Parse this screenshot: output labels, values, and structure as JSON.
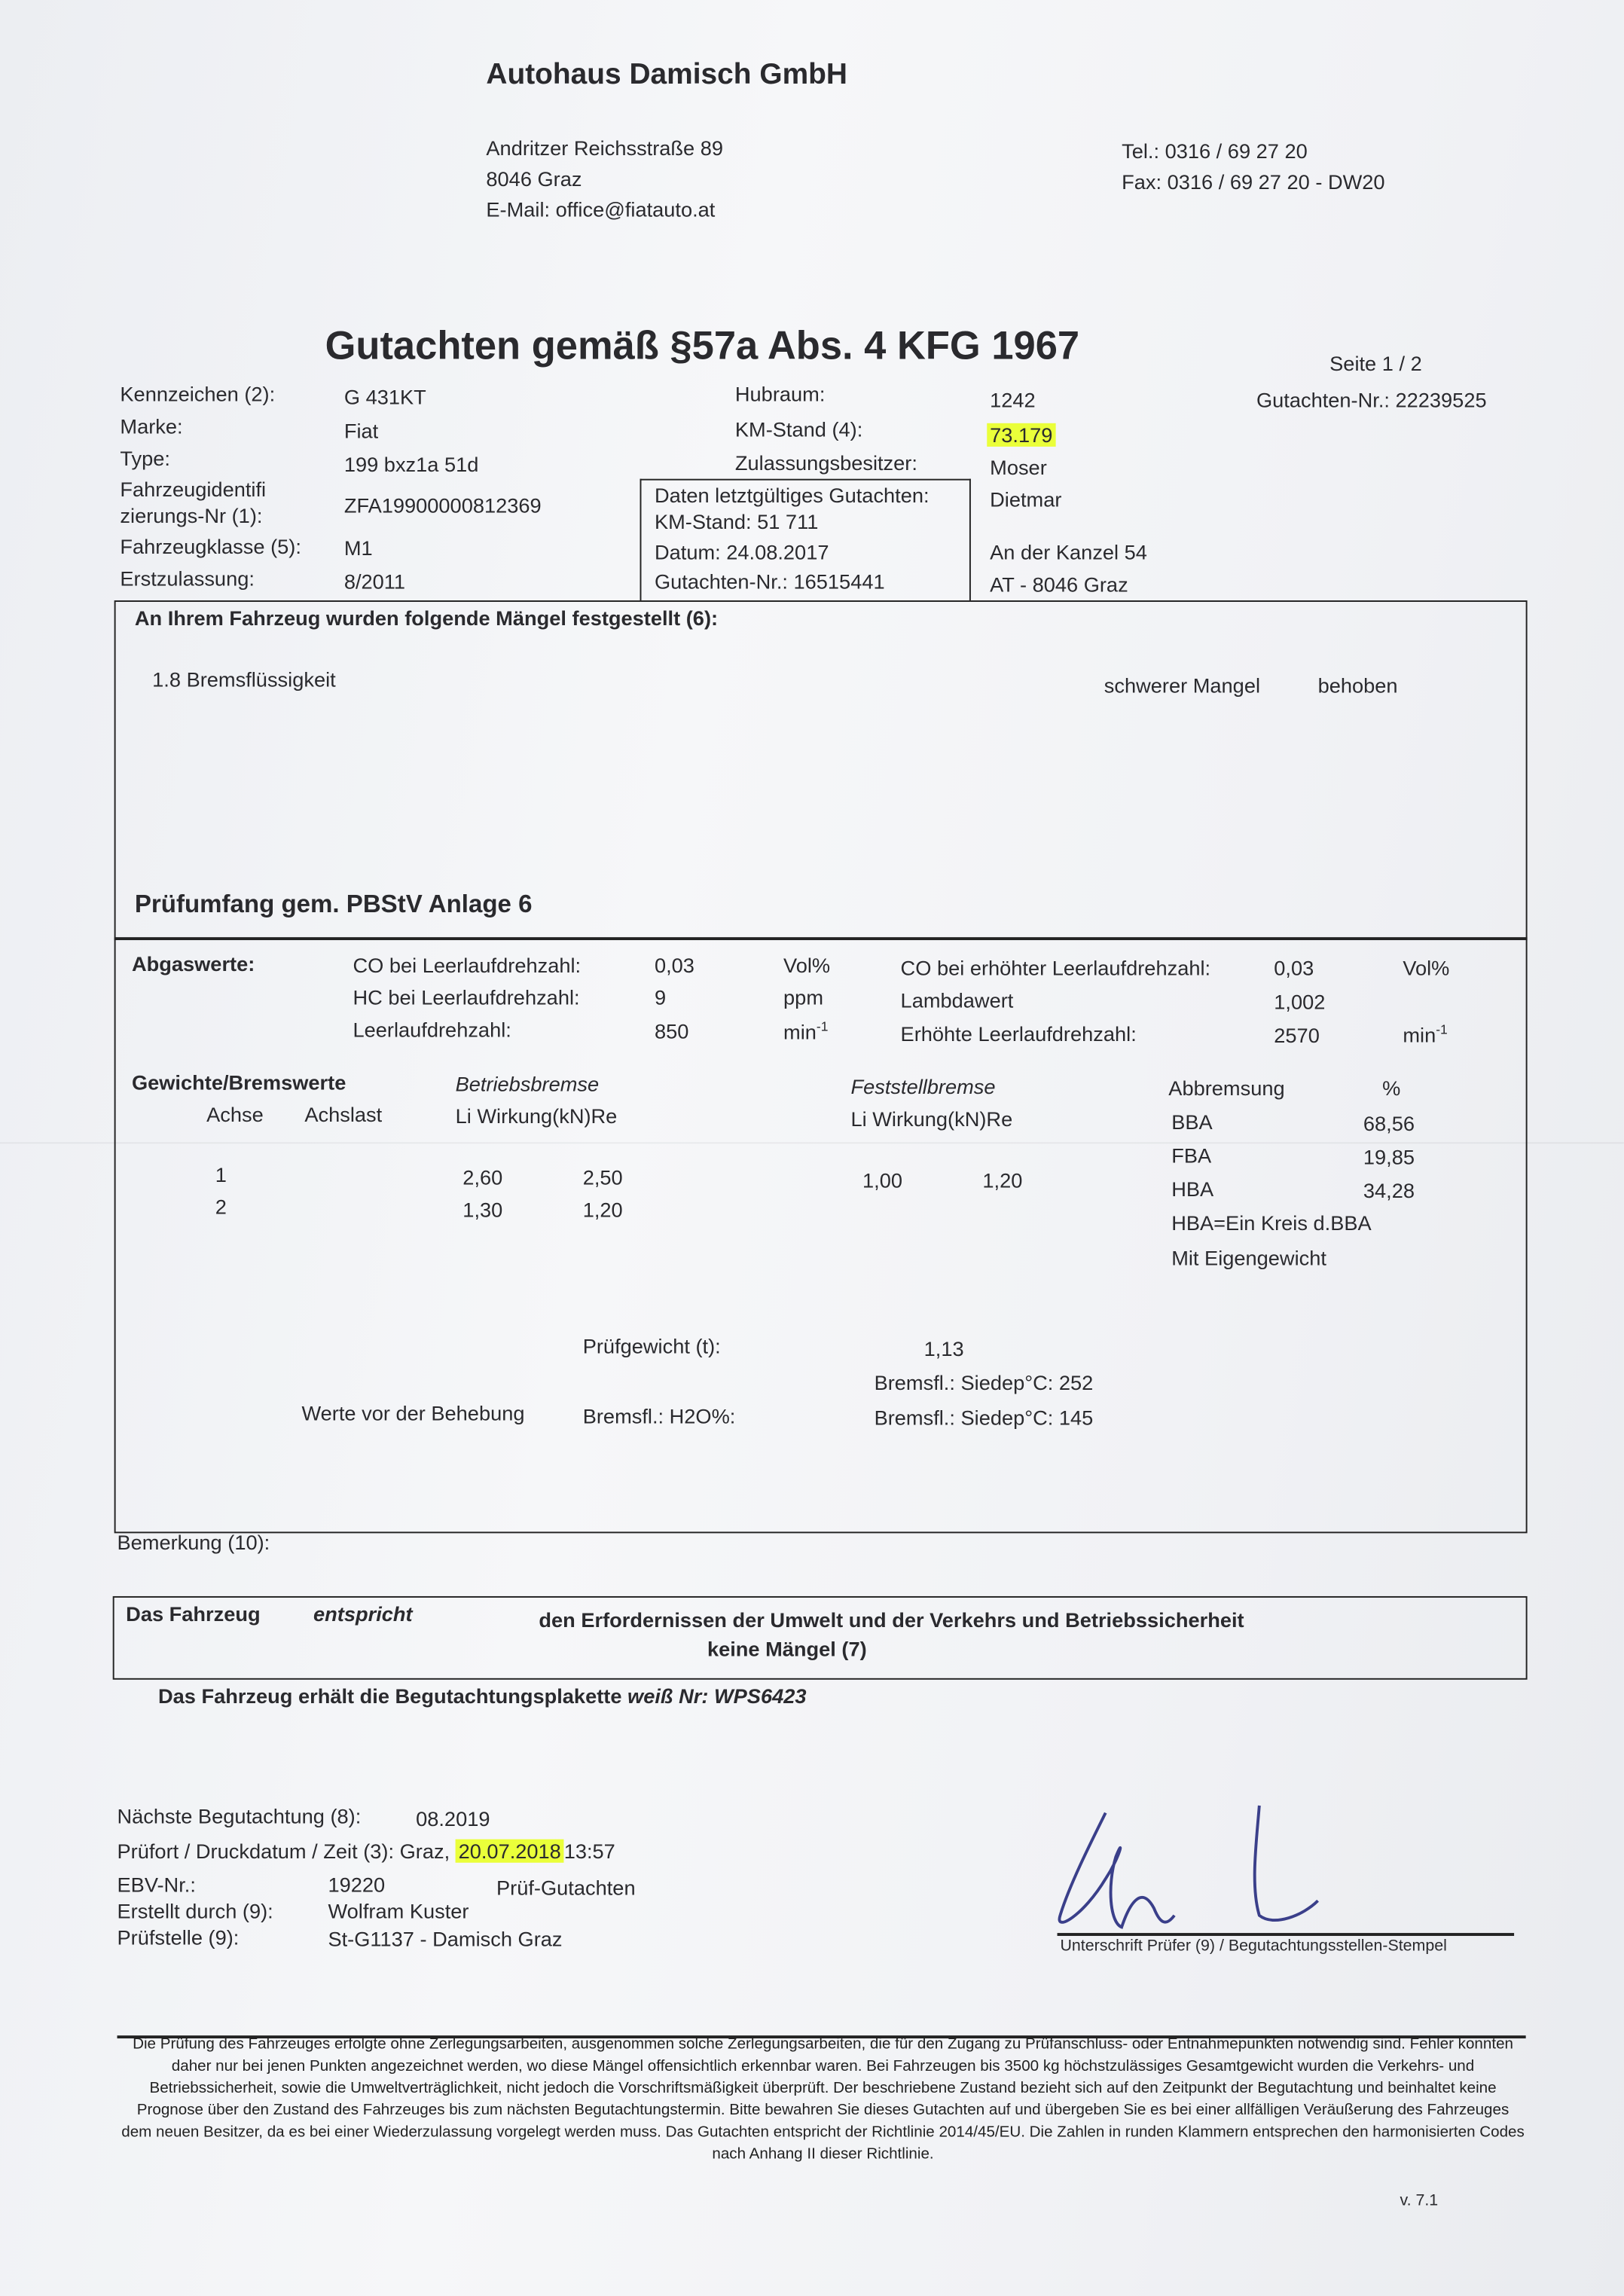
{
  "header": {
    "company": "Autohaus Damisch GmbH",
    "address": [
      "Andritzer Reichsstraße 89",
      "8046 Graz",
      "E-Mail: office@fiatauto.at"
    ],
    "tel": "Tel.: 0316 / 69 27 20",
    "fax": "Fax: 0316 / 69 27 20 - DW20"
  },
  "title": "Gutachten gemäß §57a Abs. 4 KFG 1967",
  "page": "Seite 1 / 2",
  "report_no": "Gutachten-Nr.: 22239525",
  "vehicle": {
    "kennzeichen_label": "Kennzeichen (2):",
    "kennzeichen": "G 431KT",
    "marke_label": "Marke:",
    "marke": "Fiat",
    "type_label": "Type:",
    "type": "199 bxz1a 51d",
    "fin_label_1": "Fahrzeugidentifi",
    "fin_label_2": "zierungs-Nr (1):",
    "fin": "ZFA19900000812369",
    "klasse_label": "Fahrzeugklasse (5):",
    "klasse": "M1",
    "erstzulassung_label": "Erstzulassung:",
    "erstzulassung": "8/2011",
    "hubraum_label": "Hubraum:",
    "hubraum": "1242",
    "km_label": "KM-Stand (4):",
    "km": "73.179",
    "besitzer_label": "Zulassungsbesitzer:",
    "besitzer": [
      "Moser",
      "Dietmar",
      "An der Kanzel 54",
      "AT - 8046 Graz"
    ]
  },
  "previous": {
    "title": "Daten letztgültiges Gutachten:",
    "km": "KM-Stand: 51 711",
    "datum": "Datum: 24.08.2017",
    "nr": "Gutachten-Nr.: 16515441"
  },
  "defects": {
    "heading": "An Ihrem Fahrzeug wurden folgende Mängel festgestellt (6):",
    "items": [
      {
        "name": "1.8 Bremsflüssigkeit",
        "severity": "schwerer Mangel",
        "status": "behoben"
      }
    ]
  },
  "scope": "Prüfumfang gem. PBStV Anlage 6",
  "exhaust": {
    "label": "Abgaswerte:",
    "rows": [
      {
        "l": "CO bei Leerlaufdrehzahl:",
        "v": "0,03",
        "u": "Vol%",
        "l2": "CO bei erhöhter Leerlaufdrehzahl:",
        "v2": "0,03",
        "u2": "Vol%"
      },
      {
        "l": "HC bei Leerlaufdrehzahl:",
        "v": "9",
        "u": "ppm",
        "l2": "Lambdawert",
        "v2": "1,002",
        "u2": ""
      },
      {
        "l": "Leerlaufdrehzahl:",
        "v": "850",
        "u": "min",
        "l2": "Erhöhte Leerlaufdrehzahl:",
        "v2": "2570",
        "u2": "min"
      }
    ],
    "unit_exp": "-1"
  },
  "brakes": {
    "label": "Gewichte/Bremswerte",
    "betriebsbremse": "Betriebsbremse",
    "feststellbremse": "Feststellbremse",
    "achse": "Achse",
    "achslast": "Achslast",
    "wirkung": "Li Wirkung(kN)Re",
    "abbremsung": "Abbremsung",
    "percent": "%",
    "axles": [
      {
        "achse": "1",
        "bb_li": "2,60",
        "bb_re": "2,50",
        "fb_li": "1,00",
        "fb_re": "1,20"
      },
      {
        "achse": "2",
        "bb_li": "1,30",
        "bb_re": "1,20",
        "fb_li": "",
        "fb_re": ""
      }
    ],
    "ratios": [
      {
        "k": "BBA",
        "v": "68,56"
      },
      {
        "k": "FBA",
        "v": "19,85"
      },
      {
        "k": "HBA",
        "v": "34,28"
      }
    ],
    "note1": "HBA=Ein Kreis d.BBA",
    "note2": "Mit Eigengewicht",
    "pruefgewicht_label": "Prüfgewicht (t):",
    "pruefgewicht": "1,13",
    "siede1": "Bremsfl.: Siedep°C: 252",
    "vor_behebung": "Werte vor der Behebung",
    "h2o": "Bremsfl.: H2O%:",
    "siede2": "Bremsfl.: Siedep°C: 145"
  },
  "bemerkung": "Bemerkung (10):",
  "result": {
    "a": "Das Fahrzeug",
    "b": "entspricht",
    "c": "den Erfordernissen der Umwelt und der Verkehrs und Betriebssicherheit",
    "d": "keine Mängel (7)",
    "plakette_a": "Das Fahrzeug erhält die Begutachtungsplakette",
    "plakette_b": "weiß Nr: WPS6423"
  },
  "meta": {
    "naechste_label": "Nächste Begutachtung (8):",
    "naechste": "08.2019",
    "pruefort_label": "Prüfort / Druckdatum / Zeit (3): Graz,",
    "datum": "20.07.2018",
    "zeit": "13:57",
    "ebv_label": "EBV-Nr.:",
    "ebv": "19220",
    "art": "Prüf-Gutachten",
    "erstellt_label": "Erstellt durch (9):",
    "erstellt": "Wolfram Kuster",
    "pruefstelle_label": "Prüfstelle (9):",
    "pruefstelle": "St-G1137 - Damisch Graz",
    "signature_label": "Unterschrift Prüfer (9) / Begutachtungsstellen-Stempel"
  },
  "footer": "Die Prüfung des Fahrzeuges erfolgte ohne Zerlegungsarbeiten, ausgenommen solche Zerlegungsarbeiten, die für den Zugang zu Prüfanschluss- oder Entnahmepunkten notwendig sind. Fehler konnten daher nur bei jenen Punkten angezeichnet werden, wo diese Mängel offensichtlich erkennbar waren. Bei Fahrzeugen bis 3500 kg höchstzulässiges Gesamtgewicht wurden die Verkehrs- und Betriebssicherheit, sowie die Umweltverträglichkeit, nicht jedoch die Vorschriftsmäßigkeit überprüft. Der beschriebene Zustand bezieht sich auf den Zeitpunkt der Begutachtung und beinhaltet keine Prognose über den Zustand des Fahrzeuges bis zum nächsten Begutachtungstermin. Bitte bewahren Sie dieses Gutachten auf und übergeben Sie es bei einer allfälligen Veräußerung des Fahrzeuges dem neuen Besitzer, da es bei einer Wiederzulassung vorgelegt werden muss. Das Gutachten entspricht der Richtlinie 2014/45/EU. Die Zahlen in runden Klammern entsprechen den harmonisierten Codes nach Anhang II dieser Richtlinie.",
  "version": "v. 7.1",
  "highlight_color": "#eaff3a"
}
